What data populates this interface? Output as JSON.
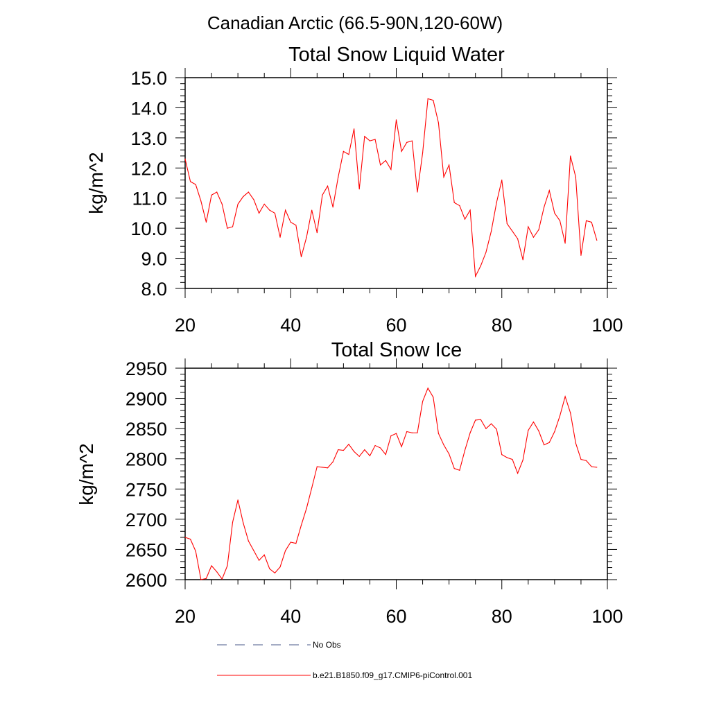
{
  "suptitle": "Canadian Arctic (66.5-90N,120-60W)",
  "legend": [
    {
      "label": "No Obs",
      "style": "dashed",
      "color": "#4a5a8a"
    },
    {
      "label": "b.e21.B1850.f09_g17.CMIP6-piControl.001",
      "style": "solid",
      "color": "#ff0000"
    }
  ],
  "chart_data": [
    {
      "type": "line",
      "title": "Total Snow Liquid Water",
      "xlabel": "",
      "ylabel": "kg/m^2",
      "xlim": [
        20,
        100
      ],
      "ylim": [
        8.0,
        15.0
      ],
      "xticks": [
        20,
        40,
        60,
        80,
        100
      ],
      "xtick_labels": [
        "20",
        "40",
        "60",
        "80",
        "100"
      ],
      "yticks": [
        8.0,
        9.0,
        10.0,
        11.0,
        12.0,
        13.0,
        14.0,
        15.0
      ],
      "ytick_labels": [
        "8.0",
        "9.0",
        "10.0",
        "11.0",
        "12.0",
        "13.0",
        "14.0",
        "15.0"
      ],
      "series": [
        {
          "name": "b.e21.B1850.f09_g17.CMIP6-piControl.001",
          "color": "#ff0000",
          "x": [
            20,
            21,
            22,
            23,
            24,
            25,
            26,
            27,
            28,
            29,
            30,
            31,
            32,
            33,
            34,
            35,
            36,
            37,
            38,
            39,
            40,
            41,
            42,
            43,
            44,
            45,
            46,
            47,
            48,
            49,
            50,
            51,
            52,
            53,
            54,
            55,
            56,
            57,
            58,
            59,
            60,
            61,
            62,
            63,
            64,
            65,
            66,
            67,
            68,
            69,
            70,
            71,
            72,
            73,
            74,
            75,
            76,
            77,
            78,
            79,
            80,
            81,
            82,
            83,
            84,
            85,
            86,
            87,
            88,
            89,
            90,
            91,
            92,
            93,
            94,
            95,
            96,
            97,
            98
          ],
          "values": [
            12.3,
            11.55,
            11.45,
            10.9,
            10.2,
            11.1,
            11.2,
            10.8,
            10.0,
            10.05,
            10.8,
            11.05,
            11.2,
            10.95,
            10.5,
            10.8,
            10.6,
            10.5,
            9.7,
            10.6,
            10.2,
            10.1,
            9.05,
            9.7,
            10.6,
            9.85,
            11.1,
            11.4,
            10.7,
            11.7,
            12.55,
            12.45,
            13.3,
            11.3,
            13.05,
            12.9,
            12.95,
            12.1,
            12.25,
            11.95,
            13.6,
            12.55,
            12.85,
            12.9,
            11.2,
            12.5,
            14.3,
            14.25,
            13.5,
            11.7,
            12.1,
            10.85,
            10.75,
            10.3,
            10.6,
            8.4,
            8.75,
            9.2,
            9.9,
            10.85,
            11.6,
            10.15,
            9.9,
            9.65,
            8.95,
            10.05,
            9.7,
            9.95,
            10.7,
            11.25,
            10.5,
            10.25,
            9.5,
            12.4,
            11.7,
            9.1,
            10.25,
            10.2,
            9.6
          ]
        }
      ]
    },
    {
      "type": "line",
      "title": "Total Snow Ice",
      "xlabel": "",
      "ylabel": "kg/m^2",
      "xlim": [
        20,
        100
      ],
      "ylim": [
        2600,
        2950
      ],
      "xticks": [
        20,
        40,
        60,
        80,
        100
      ],
      "xtick_labels": [
        "20",
        "40",
        "60",
        "80",
        "100"
      ],
      "yticks": [
        2600,
        2650,
        2700,
        2750,
        2800,
        2850,
        2900,
        2950
      ],
      "ytick_labels": [
        "2600",
        "2650",
        "2700",
        "2750",
        "2800",
        "2850",
        "2900",
        "2950"
      ],
      "series": [
        {
          "name": "b.e21.B1850.f09_g17.CMIP6-piControl.001",
          "color": "#ff0000",
          "x": [
            20,
            21,
            22,
            23,
            24,
            25,
            26,
            27,
            28,
            29,
            30,
            31,
            32,
            33,
            34,
            35,
            36,
            37,
            38,
            39,
            40,
            41,
            42,
            43,
            44,
            45,
            46,
            47,
            48,
            49,
            50,
            51,
            52,
            53,
            54,
            55,
            56,
            57,
            58,
            59,
            60,
            61,
            62,
            63,
            64,
            65,
            66,
            67,
            68,
            69,
            70,
            71,
            72,
            73,
            74,
            75,
            76,
            77,
            78,
            79,
            80,
            81,
            82,
            83,
            84,
            85,
            86,
            87,
            88,
            89,
            90,
            91,
            92,
            93,
            94,
            95,
            96,
            97,
            98
          ],
          "values": [
            2670,
            2667,
            2647,
            2600,
            2602,
            2623,
            2613,
            2601,
            2623,
            2695,
            2732,
            2694,
            2664,
            2648,
            2632,
            2641,
            2618,
            2611,
            2621,
            2648,
            2662,
            2660,
            2690,
            2718,
            2752,
            2787,
            2786,
            2785,
            2795,
            2815,
            2814,
            2824,
            2812,
            2804,
            2815,
            2805,
            2822,
            2818,
            2807,
            2838,
            2842,
            2820,
            2845,
            2843,
            2843,
            2895,
            2917,
            2902,
            2842,
            2823,
            2808,
            2784,
            2781,
            2814,
            2843,
            2864,
            2865,
            2850,
            2858,
            2849,
            2807,
            2802,
            2799,
            2776,
            2798,
            2847,
            2861,
            2846,
            2823,
            2827,
            2845,
            2871,
            2903,
            2876,
            2826,
            2799,
            2797,
            2787,
            2786
          ]
        }
      ]
    }
  ]
}
